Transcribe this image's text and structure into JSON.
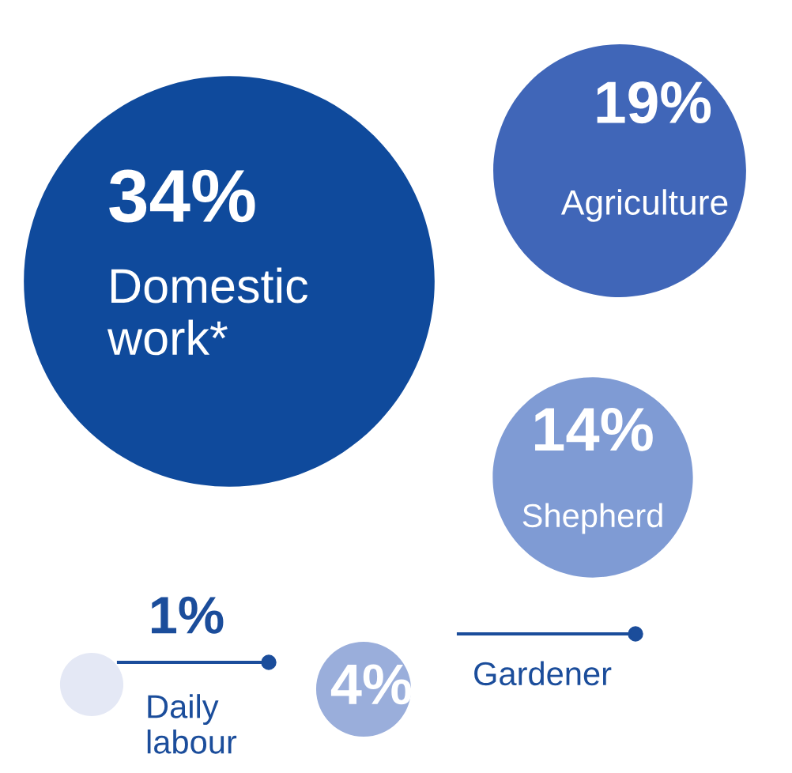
{
  "chart_data": {
    "type": "other",
    "categories": [
      "Domestic work*",
      "Agriculture",
      "Shepherd",
      "Gardener",
      "Daily labour"
    ],
    "values": [
      34,
      19,
      14,
      4,
      1
    ],
    "value_labels": [
      "34%",
      "19%",
      "14%",
      "4%",
      "1%"
    ],
    "colors": [
      "#0f4a9c",
      "#4066b8",
      "#7f9bd4",
      "#9aaedb",
      "#e4e8f5"
    ]
  }
}
